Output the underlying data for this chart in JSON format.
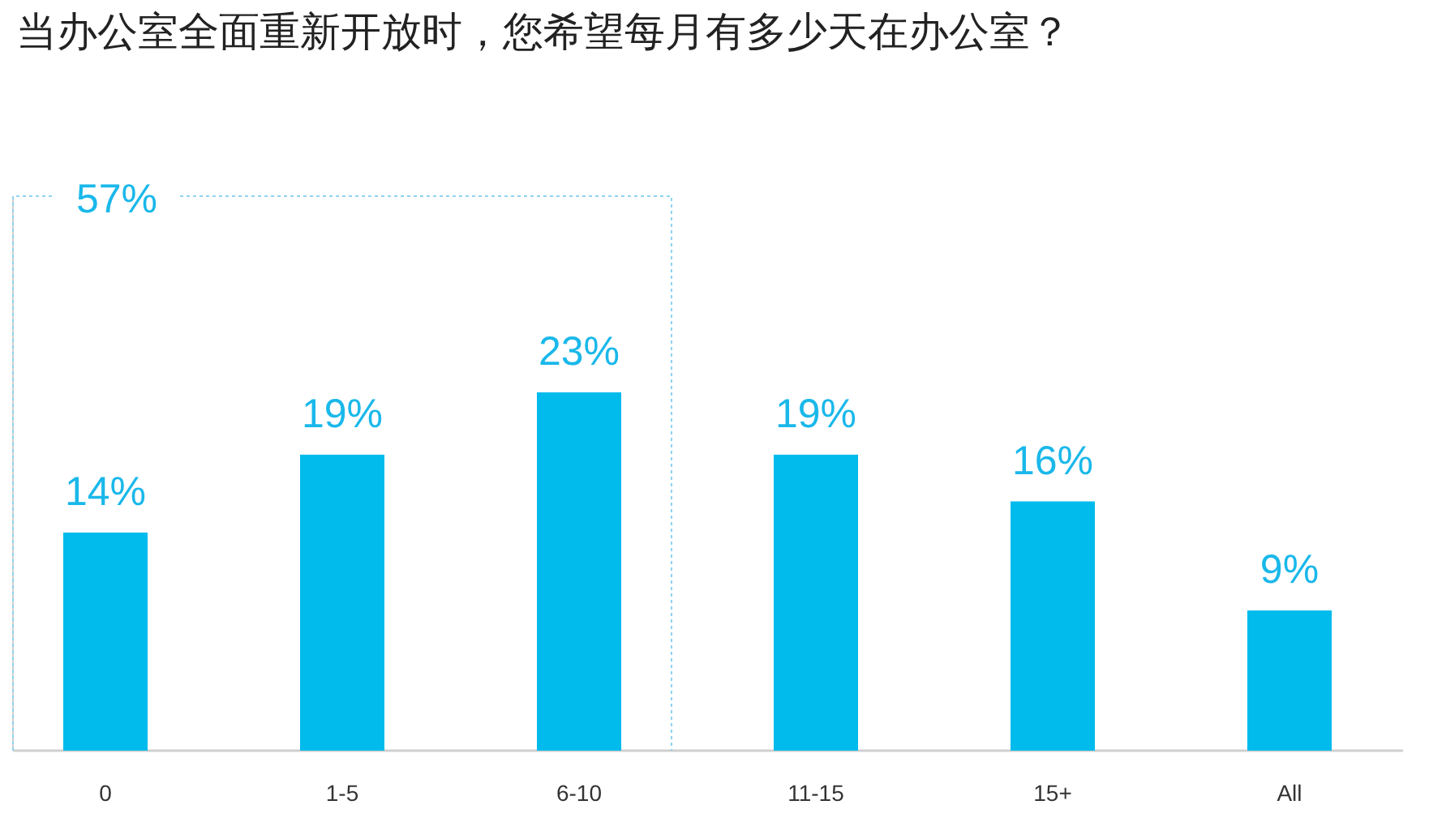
{
  "chart_data": {
    "type": "bar",
    "title": "当办公室全面重新开放时，您希望每月有多少天在办公室？",
    "categories": [
      "0",
      "1-5",
      "6-10",
      "11-15",
      "15+",
      "All"
    ],
    "values": [
      14,
      19,
      23,
      19,
      16,
      9
    ],
    "value_labels": [
      "14%",
      "19%",
      "23%",
      "19%",
      "16%",
      "9%"
    ],
    "color": "#00bbec",
    "annotations": [
      "57%"
    ]
  }
}
